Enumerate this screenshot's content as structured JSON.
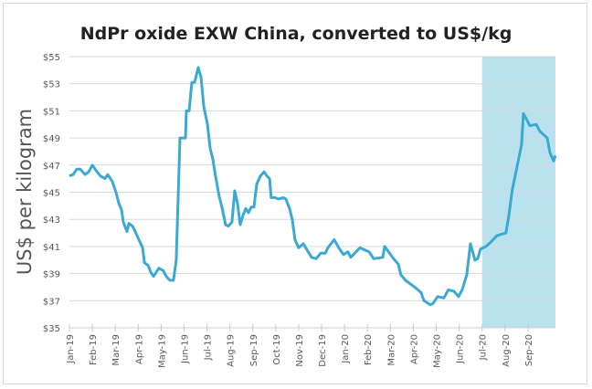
{
  "chart_data": {
    "type": "line",
    "title": "NdPr oxide EXW China, converted to US$/kg",
    "xlabel": "",
    "ylabel": "US$ per kilogram",
    "ylim": [
      35,
      55
    ],
    "xlim_months_since_jan19": [
      0,
      21.2
    ],
    "yticks": [
      "$35",
      "$37",
      "$39",
      "$41",
      "$43",
      "$45",
      "$47",
      "$49",
      "$51",
      "$53",
      "$55"
    ],
    "ytick_values": [
      35,
      37,
      39,
      41,
      43,
      45,
      47,
      49,
      51,
      53,
      55
    ],
    "categories": [
      "Jan-19",
      "Feb-19",
      "Mar-19",
      "Apr-19",
      "May-19",
      "Jun-19",
      "Jul-19",
      "Aug-19",
      "Sep-19",
      "Oct-19",
      "Nov-19",
      "Dec-19",
      "Jan-20",
      "Feb-20",
      "Mar-20",
      "Apr-20",
      "May-20",
      "Jun-20",
      "Jul-20",
      "Aug-20",
      "Sep-20"
    ],
    "grid": true,
    "legend": "none",
    "line_color": "#3aa9d3",
    "highlight": {
      "from_month": 18,
      "to_month": 21.2,
      "color": "#b9e2ee",
      "label": ""
    },
    "series": [
      {
        "name": "NdPr oxide EXW China (US$/kg)",
        "points": [
          [
            0,
            46.2
          ],
          [
            0.16,
            46.3
          ],
          [
            0.32,
            46.7
          ],
          [
            0.48,
            46.7
          ],
          [
            0.68,
            46.3
          ],
          [
            0.84,
            46.5
          ],
          [
            1.0,
            47.0
          ],
          [
            1.16,
            46.6
          ],
          [
            1.35,
            46.2
          ],
          [
            1.55,
            46.0
          ],
          [
            1.67,
            46.3
          ],
          [
            1.87,
            45.8
          ],
          [
            2.03,
            45.0
          ],
          [
            2.15,
            44.2
          ],
          [
            2.27,
            43.7
          ],
          [
            2.35,
            42.8
          ],
          [
            2.51,
            42.1
          ],
          [
            2.59,
            42.7
          ],
          [
            2.75,
            42.5
          ],
          [
            2.87,
            42.1
          ],
          [
            3.03,
            41.5
          ],
          [
            3.19,
            40.9
          ],
          [
            3.27,
            39.8
          ],
          [
            3.43,
            39.6
          ],
          [
            3.55,
            39.1
          ],
          [
            3.67,
            38.8
          ],
          [
            3.9,
            39.4
          ],
          [
            4.1,
            39.2
          ],
          [
            4.22,
            38.8
          ],
          [
            4.38,
            38.5
          ],
          [
            4.54,
            38.5
          ],
          [
            4.66,
            40.0
          ],
          [
            4.82,
            49.0
          ],
          [
            5.06,
            49.0
          ],
          [
            5.1,
            51.0
          ],
          [
            5.22,
            51.0
          ],
          [
            5.34,
            53.1
          ],
          [
            5.46,
            53.1
          ],
          [
            5.62,
            54.2
          ],
          [
            5.74,
            53.5
          ],
          [
            5.86,
            51.3
          ],
          [
            6.02,
            50.0
          ],
          [
            6.14,
            48.2
          ],
          [
            6.25,
            47.5
          ],
          [
            6.37,
            46.2
          ],
          [
            6.53,
            44.7
          ],
          [
            6.65,
            43.9
          ],
          [
            6.81,
            42.6
          ],
          [
            6.93,
            42.5
          ],
          [
            7.09,
            42.8
          ],
          [
            7.21,
            45.1
          ],
          [
            7.33,
            44.2
          ],
          [
            7.45,
            42.6
          ],
          [
            7.57,
            43.3
          ],
          [
            7.69,
            43.8
          ],
          [
            7.81,
            43.5
          ],
          [
            7.93,
            43.9
          ],
          [
            8.05,
            43.9
          ],
          [
            8.17,
            45.6
          ],
          [
            8.33,
            46.2
          ],
          [
            8.49,
            46.5
          ],
          [
            8.61,
            46.2
          ],
          [
            8.73,
            46.0
          ],
          [
            8.8,
            44.6
          ],
          [
            8.96,
            44.6
          ],
          [
            9.12,
            44.5
          ],
          [
            9.32,
            44.6
          ],
          [
            9.44,
            44.5
          ],
          [
            9.6,
            43.8
          ],
          [
            9.72,
            43.0
          ],
          [
            9.84,
            41.5
          ],
          [
            10.0,
            40.9
          ],
          [
            10.2,
            41.2
          ],
          [
            10.56,
            40.2
          ],
          [
            10.76,
            40.1
          ],
          [
            10.96,
            40.5
          ],
          [
            11.16,
            40.5
          ],
          [
            11.27,
            40.9
          ],
          [
            11.55,
            41.5
          ],
          [
            11.75,
            40.9
          ],
          [
            11.95,
            40.4
          ],
          [
            12.15,
            40.6
          ],
          [
            12.27,
            40.2
          ],
          [
            12.67,
            40.9
          ],
          [
            13.07,
            40.6
          ],
          [
            13.27,
            40.1
          ],
          [
            13.67,
            40.2
          ],
          [
            13.75,
            41.0
          ],
          [
            14.14,
            40.1
          ],
          [
            14.34,
            39.7
          ],
          [
            14.46,
            38.9
          ],
          [
            14.66,
            38.5
          ],
          [
            15.06,
            38.0
          ],
          [
            15.34,
            37.6
          ],
          [
            15.46,
            37.0
          ],
          [
            15.74,
            36.7
          ],
          [
            15.86,
            36.8
          ],
          [
            16.06,
            37.3
          ],
          [
            16.33,
            37.2
          ],
          [
            16.53,
            37.8
          ],
          [
            16.77,
            37.7
          ],
          [
            16.97,
            37.3
          ],
          [
            17.13,
            37.8
          ],
          [
            17.33,
            38.9
          ],
          [
            17.49,
            41.2
          ],
          [
            17.69,
            40.0
          ],
          [
            17.81,
            40.1
          ],
          [
            17.93,
            40.8
          ],
          [
            18.17,
            41.0
          ],
          [
            18.37,
            41.3
          ],
          [
            18.65,
            41.8
          ],
          [
            19.04,
            42.0
          ],
          [
            19.16,
            43.2
          ],
          [
            19.32,
            45.2
          ],
          [
            19.72,
            48.5
          ],
          [
            19.8,
            50.8
          ],
          [
            19.96,
            50.3
          ],
          [
            20.08,
            49.9
          ],
          [
            20.36,
            50.0
          ],
          [
            20.52,
            49.5
          ],
          [
            20.84,
            49.0
          ],
          [
            20.96,
            47.9
          ],
          [
            21.12,
            47.3
          ],
          [
            21.2,
            47.7
          ]
        ]
      }
    ]
  }
}
